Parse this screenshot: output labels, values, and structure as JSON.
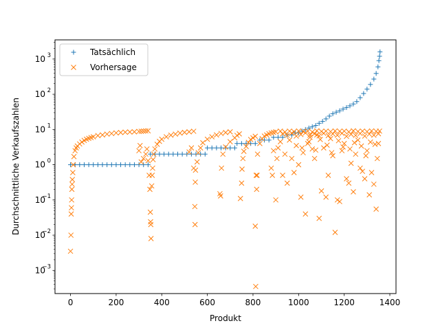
{
  "chart_data": {
    "type": "scatter",
    "title": "",
    "xlabel": "Produkt",
    "ylabel": "Durchschnittliche Verkaufszahlen",
    "xlim": [
      -68,
      1427
    ],
    "ylim": [
      0.00022,
      3500
    ],
    "yscale": "log",
    "x_ticks": [
      0,
      200,
      400,
      600,
      800,
      1000,
      1200,
      1400
    ],
    "y_ticks": [
      {
        "exp": -3,
        "value": 0.001
      },
      {
        "exp": -2,
        "value": 0.01
      },
      {
        "exp": -1,
        "value": 0.1
      },
      {
        "exp": 0,
        "value": 1
      },
      {
        "exp": 1,
        "value": 10
      },
      {
        "exp": 2,
        "value": 100
      },
      {
        "exp": 3,
        "value": 1000
      }
    ],
    "grid": false,
    "legend": {
      "position": "top-left"
    },
    "series": [
      {
        "name": "Tatsächlich",
        "marker": "+",
        "color": "#1f77b4",
        "points": [
          [
            0,
            1
          ],
          [
            20,
            1
          ],
          [
            40,
            1
          ],
          [
            60,
            1
          ],
          [
            80,
            1
          ],
          [
            100,
            1
          ],
          [
            120,
            1
          ],
          [
            140,
            1
          ],
          [
            160,
            1
          ],
          [
            180,
            1
          ],
          [
            200,
            1
          ],
          [
            220,
            1
          ],
          [
            240,
            1
          ],
          [
            260,
            1
          ],
          [
            280,
            1
          ],
          [
            300,
            1
          ],
          [
            320,
            1
          ],
          [
            340,
            1
          ],
          [
            350,
            2
          ],
          [
            370,
            2
          ],
          [
            390,
            2
          ],
          [
            410,
            2
          ],
          [
            430,
            2
          ],
          [
            450,
            2
          ],
          [
            470,
            2
          ],
          [
            490,
            2
          ],
          [
            510,
            2
          ],
          [
            530,
            2
          ],
          [
            550,
            2
          ],
          [
            570,
            2
          ],
          [
            590,
            2
          ],
          [
            600,
            3
          ],
          [
            620,
            3
          ],
          [
            640,
            3
          ],
          [
            660,
            3
          ],
          [
            680,
            3
          ],
          [
            700,
            3
          ],
          [
            720,
            3
          ],
          [
            730,
            4
          ],
          [
            750,
            4
          ],
          [
            770,
            4
          ],
          [
            790,
            4
          ],
          [
            810,
            4
          ],
          [
            830,
            5
          ],
          [
            850,
            5
          ],
          [
            870,
            5
          ],
          [
            890,
            6
          ],
          [
            910,
            6
          ],
          [
            930,
            6
          ],
          [
            950,
            7
          ],
          [
            970,
            7
          ],
          [
            985,
            8
          ],
          [
            1000,
            8
          ],
          [
            1015,
            9
          ],
          [
            1030,
            10
          ],
          [
            1045,
            11
          ],
          [
            1060,
            12
          ],
          [
            1075,
            13
          ],
          [
            1090,
            15
          ],
          [
            1105,
            17
          ],
          [
            1120,
            20
          ],
          [
            1135,
            24
          ],
          [
            1150,
            28
          ],
          [
            1165,
            31
          ],
          [
            1180,
            34
          ],
          [
            1195,
            38
          ],
          [
            1210,
            42
          ],
          [
            1225,
            47
          ],
          [
            1240,
            53
          ],
          [
            1255,
            62
          ],
          [
            1270,
            80
          ],
          [
            1285,
            105
          ],
          [
            1300,
            140
          ],
          [
            1315,
            190
          ],
          [
            1330,
            270
          ],
          [
            1340,
            390
          ],
          [
            1348,
            600
          ],
          [
            1352,
            900
          ],
          [
            1355,
            1200
          ],
          [
            1357,
            1600
          ]
        ]
      },
      {
        "name": "Vorhersage",
        "marker": "x",
        "color": "#ff7f0e",
        "points": [
          [
            0,
            0.0035
          ],
          [
            2,
            0.01
          ],
          [
            3,
            0.04
          ],
          [
            4,
            0.06
          ],
          [
            5,
            0.1
          ],
          [
            6,
            0.2
          ],
          [
            7,
            0.28
          ],
          [
            8,
            0.38
          ],
          [
            10,
            0.6
          ],
          [
            12,
            1.0
          ],
          [
            15,
            1.7
          ],
          [
            20,
            2.5
          ],
          [
            25,
            3.0
          ],
          [
            30,
            3.4
          ],
          [
            40,
            3.9
          ],
          [
            50,
            4.4
          ],
          [
            60,
            4.9
          ],
          [
            70,
            5.3
          ],
          [
            80,
            5.6
          ],
          [
            90,
            5.9
          ],
          [
            100,
            6.2
          ],
          [
            120,
            6.7
          ],
          [
            140,
            7.0
          ],
          [
            160,
            7.4
          ],
          [
            180,
            7.7
          ],
          [
            200,
            8.0
          ],
          [
            220,
            8.2
          ],
          [
            240,
            8.4
          ],
          [
            260,
            8.5
          ],
          [
            280,
            8.6
          ],
          [
            300,
            8.8
          ],
          [
            310,
            8.9
          ],
          [
            320,
            9.0
          ],
          [
            330,
            9.1
          ],
          [
            340,
            9.2
          ],
          [
            300,
            2.5
          ],
          [
            305,
            3.5
          ],
          [
            310,
            1.2
          ],
          [
            320,
            1.5
          ],
          [
            330,
            2.0
          ],
          [
            335,
            2.8
          ],
          [
            340,
            1.3
          ],
          [
            345,
            0.5
          ],
          [
            348,
            0.2
          ],
          [
            350,
            0.045
          ],
          [
            351,
            0.024
          ],
          [
            352,
            0.02
          ],
          [
            353,
            0.008
          ],
          [
            356,
            0.25
          ],
          [
            358,
            0.5
          ],
          [
            360,
            0.8
          ],
          [
            362,
            1.4
          ],
          [
            365,
            2.0
          ],
          [
            370,
            2.8
          ],
          [
            380,
            3.8
          ],
          [
            390,
            4.6
          ],
          [
            400,
            5.3
          ],
          [
            420,
            6.2
          ],
          [
            440,
            6.9
          ],
          [
            460,
            7.4
          ],
          [
            480,
            7.9
          ],
          [
            500,
            8.3
          ],
          [
            520,
            8.6
          ],
          [
            540,
            8.9
          ],
          [
            520,
            2.3
          ],
          [
            530,
            3.0
          ],
          [
            540,
            0.8
          ],
          [
            545,
            0.065
          ],
          [
            546,
            0.02
          ],
          [
            547,
            0.32
          ],
          [
            548,
            0.7
          ],
          [
            555,
            1.2
          ],
          [
            560,
            2.2
          ],
          [
            570,
            3.0
          ],
          [
            580,
            4.2
          ],
          [
            600,
            5.3
          ],
          [
            620,
            6.2
          ],
          [
            640,
            7.0
          ],
          [
            660,
            7.7
          ],
          [
            680,
            8.2
          ],
          [
            700,
            8.6
          ],
          [
            655,
            0.15
          ],
          [
            658,
            0.13
          ],
          [
            662,
            0.8
          ],
          [
            668,
            2.0
          ],
          [
            680,
            3.2
          ],
          [
            700,
            4.5
          ],
          [
            720,
            5.8
          ],
          [
            730,
            6.8
          ],
          [
            740,
            7.5
          ],
          [
            745,
            0.11
          ],
          [
            750,
            0.3
          ],
          [
            752,
            0.75
          ],
          [
            756,
            1.5
          ],
          [
            760,
            2.4
          ],
          [
            770,
            3.3
          ],
          [
            780,
            4.3
          ],
          [
            790,
            5.2
          ],
          [
            800,
            5.8
          ],
          [
            810,
            6.4
          ],
          [
            810,
            0.018
          ],
          [
            812,
            0.00035
          ],
          [
            814,
            0.5
          ],
          [
            816,
            0.2
          ],
          [
            818,
            0.5
          ],
          [
            820,
            2.0
          ],
          [
            830,
            4.0
          ],
          [
            840,
            5.5
          ],
          [
            850,
            6.5
          ],
          [
            860,
            7.0
          ],
          [
            870,
            7.6
          ],
          [
            880,
            8.0
          ],
          [
            890,
            8.3
          ],
          [
            900,
            8.6
          ],
          [
            880,
            0.8
          ],
          [
            885,
            0.5
          ],
          [
            890,
            2.5
          ],
          [
            900,
            0.1
          ],
          [
            905,
            1.5
          ],
          [
            910,
            3.0
          ],
          [
            920,
            4.5
          ],
          [
            930,
            0.5
          ],
          [
            940,
            2.0
          ],
          [
            950,
            0.3
          ],
          [
            960,
            5.0
          ],
          [
            970,
            1.5
          ],
          [
            980,
            0.6
          ],
          [
            990,
            3.5
          ],
          [
            1000,
            1.0
          ],
          [
            1010,
            0.12
          ],
          [
            1020,
            2.2
          ],
          [
            1030,
            0.04
          ],
          [
            1040,
            4.0
          ],
          [
            1050,
            6.0
          ],
          [
            1060,
            2.8
          ],
          [
            1070,
            1.5
          ],
          [
            1080,
            7.0
          ],
          [
            1090,
            0.03
          ],
          [
            1100,
            0.18
          ],
          [
            1110,
            3.0
          ],
          [
            1120,
            0.12
          ],
          [
            1130,
            0.5
          ],
          [
            1140,
            5.5
          ],
          [
            1150,
            1.8
          ],
          [
            1160,
            0.012
          ],
          [
            1170,
            0.1
          ],
          [
            1180,
            0.09
          ],
          [
            1190,
            2.5
          ],
          [
            1200,
            4.0
          ],
          [
            1210,
            0.4
          ],
          [
            1220,
            0.3
          ],
          [
            1230,
            1.1
          ],
          [
            1240,
            0.17
          ],
          [
            1250,
            2.0
          ],
          [
            1260,
            5.0
          ],
          [
            1270,
            0.8
          ],
          [
            1280,
            0.65
          ],
          [
            1290,
            0.4
          ],
          [
            1300,
            2.5
          ],
          [
            1310,
            0.14
          ],
          [
            1320,
            0.6
          ],
          [
            1330,
            0.28
          ],
          [
            1340,
            0.055
          ],
          [
            1350,
            4.0
          ],
          [
            920,
            9.0
          ],
          [
            940,
            8.5
          ],
          [
            960,
            9.0
          ],
          [
            980,
            8.7
          ],
          [
            1000,
            9.1
          ],
          [
            1020,
            8.8
          ],
          [
            1040,
            9.0
          ],
          [
            1060,
            8.5
          ],
          [
            1080,
            9.2
          ],
          [
            1100,
            8.8
          ],
          [
            1120,
            9.0
          ],
          [
            1140,
            8.7
          ],
          [
            1160,
            9.1
          ],
          [
            1180,
            8.9
          ],
          [
            1200,
            9.0
          ],
          [
            1220,
            8.6
          ],
          [
            1240,
            9.2
          ],
          [
            1260,
            8.8
          ],
          [
            1280,
            9.0
          ],
          [
            1300,
            8.7
          ],
          [
            1320,
            9.1
          ],
          [
            1340,
            8.9
          ],
          [
            1355,
            9.0
          ],
          [
            930,
            7.5
          ],
          [
            950,
            6.8
          ],
          [
            970,
            7.9
          ],
          [
            990,
            6.5
          ],
          [
            1010,
            7.2
          ],
          [
            1030,
            8.0
          ],
          [
            1050,
            6.9
          ],
          [
            1070,
            7.6
          ],
          [
            1090,
            6.6
          ],
          [
            1110,
            7.8
          ],
          [
            1130,
            6.7
          ],
          [
            1150,
            7.5
          ],
          [
            1170,
            6.9
          ],
          [
            1190,
            7.8
          ],
          [
            1210,
            6.4
          ],
          [
            1230,
            7.3
          ],
          [
            1250,
            6.8
          ],
          [
            1270,
            7.7
          ],
          [
            1290,
            6.5
          ],
          [
            1310,
            7.4
          ],
          [
            1330,
            6.9
          ],
          [
            1350,
            7.6
          ],
          [
            1015,
            3.0
          ],
          [
            1045,
            4.5
          ],
          [
            1075,
            2.6
          ],
          [
            1095,
            5.2
          ],
          [
            1125,
            3.6
          ],
          [
            1145,
            2.2
          ],
          [
            1175,
            4.8
          ],
          [
            1195,
            3.2
          ],
          [
            1225,
            2.8
          ],
          [
            1245,
            4.2
          ],
          [
            1275,
            3.4
          ],
          [
            1295,
            1.8
          ],
          [
            1315,
            4.4
          ],
          [
            1335,
            3.8
          ],
          [
            1345,
            1.5
          ]
        ]
      }
    ]
  }
}
